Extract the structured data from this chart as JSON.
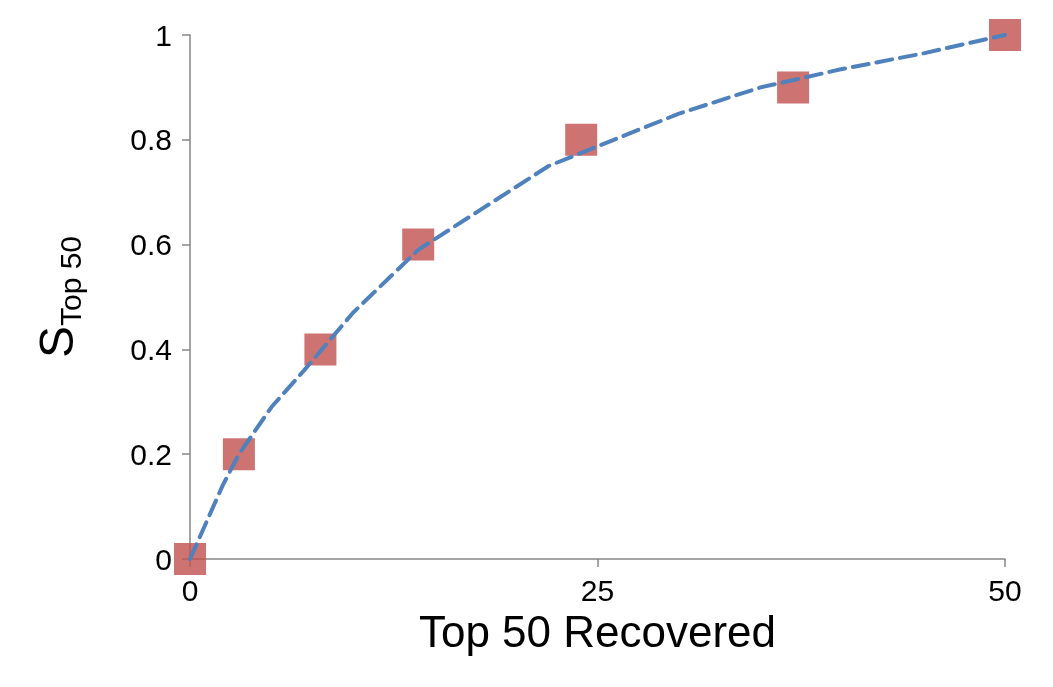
{
  "chart_data": {
    "type": "scatter",
    "xlabel": "Top 50 Recovered",
    "ylabel": "S$_{Top 50}$",
    "xlim": [
      0,
      50
    ],
    "xticks": [
      0,
      25,
      50
    ],
    "ylim": [
      0,
      1
    ],
    "yticks": [
      0,
      0.2,
      0.4,
      0.6,
      0.8,
      1
    ],
    "grid": false,
    "series": [
      {
        "type": "line",
        "color": "#4f81bd",
        "line_style": "dashed",
        "marker": "none",
        "x": [
          0,
          1,
          2,
          3,
          5,
          7,
          10,
          14,
          18,
          22,
          26,
          30,
          35,
          40,
          45,
          50
        ],
        "values": [
          0,
          0.07,
          0.14,
          0.2,
          0.29,
          0.36,
          0.47,
          0.59,
          0.67,
          0.75,
          0.8,
          0.85,
          0.9,
          0.935,
          0.965,
          1
        ]
      },
      {
        "color": "#c0504d",
        "marker": "square",
        "x": [
          0,
          3,
          8,
          14,
          24,
          37,
          50
        ],
        "values": [
          0,
          0.2,
          0.4,
          0.6,
          0.8,
          0.9,
          1
        ]
      }
    ]
  }
}
